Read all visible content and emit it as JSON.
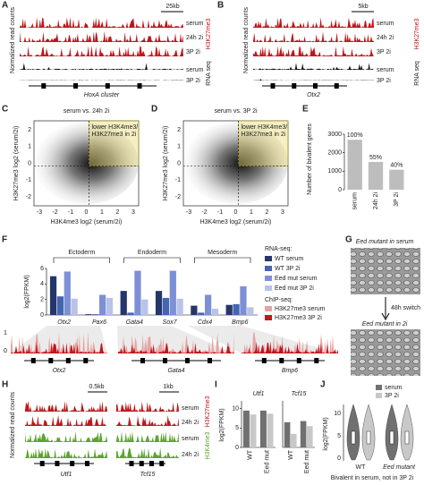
{
  "panels": {
    "A": {
      "label": "A",
      "scale": "25kb",
      "y_label": "Normalized read counts",
      "tracks": [
        "serum",
        "24h 2i",
        "3P 2i",
        "serum",
        "3P 2i"
      ],
      "mark_groups": [
        "H3K27me3",
        "RNA seq"
      ],
      "gene": "HoxA cluster"
    },
    "B": {
      "label": "B",
      "scale": "5kb",
      "y_label": "Normalized read counts",
      "tracks": [
        "serum",
        "24h 2i",
        "3P 2i",
        "serum",
        "3P 2i"
      ],
      "mark_groups": [
        "H3K27me3",
        "RNA seq"
      ],
      "gene": "Otx2"
    },
    "C": {
      "label": "C",
      "title": "serum vs. 24h 2i",
      "highlight": [
        "lower H3K4me3/",
        "H3K27me3 in 2i"
      ],
      "x_label": "H3K4me3 log2 (serum/2i)",
      "y_label": "H3K27me3 log2 (serum/2i)",
      "xticks": [
        -3,
        -2,
        -1,
        0,
        1,
        2,
        3
      ],
      "yticks": [
        2,
        1,
        0,
        -1,
        -2
      ]
    },
    "D": {
      "label": "D",
      "title": "serum vs. 3P 2i",
      "highlight": [
        "lower H3K4me3/",
        "H3K27me3 in 2i"
      ],
      "x_label": "H3K4me3 log2 (serum/2i)",
      "y_label": "H3K27me3 log2 (serum/2i)",
      "xticks": [
        -3,
        -2,
        -1,
        0,
        1,
        2,
        3
      ],
      "yticks": [
        2,
        1,
        0,
        -1,
        -2
      ]
    },
    "E": {
      "label": "E"
    },
    "F": {
      "label": "F",
      "chip_genes": [
        "Otx2",
        "Gata4",
        "Bmp6"
      ],
      "chip_scale": [
        "0",
        "1"
      ]
    },
    "G": {
      "label": "G",
      "top": "Eed mutant in serum",
      "switch": "48h switch",
      "bottom": "Eed mutant in 2i"
    },
    "H": {
      "label": "H",
      "scales": [
        "0.5kb",
        "1kb"
      ],
      "y_label": "Normalized read counts",
      "tracks": [
        "serum",
        "24h 2i",
        "serum",
        "24h 2i"
      ],
      "mark_groups": [
        "H3K27me3",
        "H3K4me3"
      ],
      "genes": [
        "Utf1",
        "Tcf15"
      ]
    },
    "I": {
      "label": "I"
    },
    "J": {
      "label": "J",
      "legend": [
        "serum",
        "3P 2i"
      ],
      "y_label": "log2(FPKM)",
      "yticks": [
        "0",
        "5",
        "10"
      ],
      "groups": [
        "WT",
        "Eed mutant"
      ],
      "x_label": "Bivalent in serum, not in 3P 2i"
    }
  },
  "chart_data": [
    {
      "type": "bar",
      "y_label": "Number of bivalent genes",
      "categories": [
        "serum",
        "24h 2i",
        "3P 2i"
      ],
      "values": [
        2700,
        1500,
        1080
      ],
      "annotations": [
        "100%",
        "55%",
        "40%"
      ],
      "color": "#bdbdbd",
      "ylim": [
        0,
        3000
      ],
      "yticks": [
        0,
        1000,
        2000,
        3000
      ]
    },
    {
      "type": "grouped_bar",
      "y_label": "log2(FPKM)",
      "categories": [
        "Otx2",
        "Pax6",
        "Gata4",
        "Sox7",
        "Cdx4",
        "Bmp6"
      ],
      "groups": [
        "Ectoderm",
        "Endoderm",
        "Mesoderm"
      ],
      "legend_titles": [
        "RNA-seq:",
        "ChIP-seq:"
      ],
      "chip_legend": [
        {
          "name": "H3K27me3 serum",
          "color": "#e6a3a3"
        },
        {
          "name": "H3K27me3 3P 2i",
          "color": "#c0161b"
        }
      ],
      "series": [
        {
          "name": "WT serum",
          "color": "#25366a",
          "values": [
            5.0,
            0.1,
            3.1,
            3.1,
            1.2,
            1.3
          ]
        },
        {
          "name": "WT 3P 2i",
          "color": "#4466b0",
          "values": [
            2.4,
            0.1,
            0.3,
            2.2,
            0.3,
            1.4
          ]
        },
        {
          "name": "Eed mut serum",
          "color": "#7d90d6",
          "values": [
            5.6,
            2.6,
            5.7,
            5.7,
            2.6,
            3.7
          ]
        },
        {
          "name": "Eed mut 3P 2i",
          "color": "#b9c2e8",
          "values": [
            2.1,
            2.2,
            2.0,
            2.1,
            0.8,
            1.0
          ]
        }
      ],
      "ylim": [
        0,
        6
      ],
      "yticks": [
        0,
        2,
        4,
        6
      ]
    },
    {
      "type": "grouped_bar",
      "title": "Utf1",
      "y_label": "log2(FPKM)",
      "categories": [
        "WT",
        "Eed mut"
      ],
      "series": [
        {
          "name": "serum",
          "color": "#707070",
          "values": [
            9.5,
            9.5
          ]
        },
        {
          "name": "3P 2i",
          "color": "#c8c8c8",
          "values": [
            8.5,
            8.7
          ]
        }
      ],
      "ylim": [
        0,
        12
      ],
      "yticks": [
        0,
        5,
        10
      ]
    },
    {
      "type": "grouped_bar",
      "title": "Tcf15",
      "categories": [
        "WT",
        "Eed mut"
      ],
      "series": [
        {
          "name": "serum",
          "color": "#707070",
          "values": [
            6.5,
            6.8
          ]
        },
        {
          "name": "3P 2i",
          "color": "#c8c8c8",
          "values": [
            3.5,
            5.5
          ]
        }
      ],
      "ylim": [
        0,
        12
      ]
    }
  ]
}
